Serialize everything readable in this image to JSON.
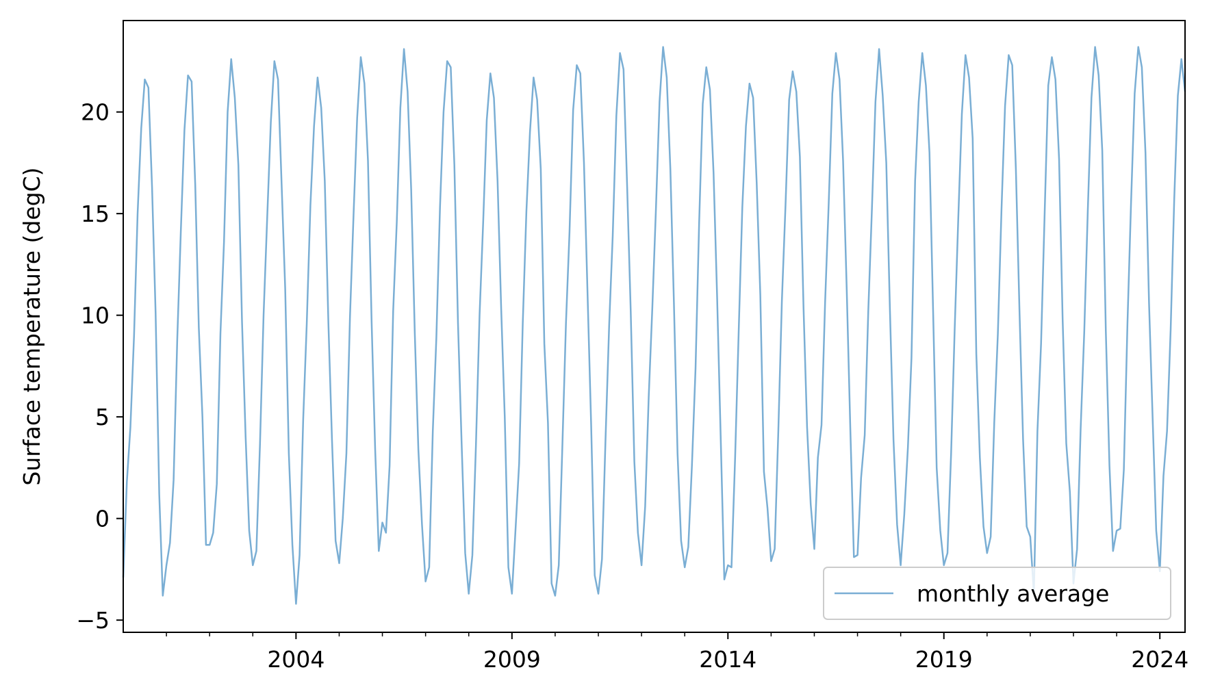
{
  "chart_data": {
    "type": "line",
    "title": "",
    "xlabel": "",
    "ylabel": "Surface temperature (degC)",
    "x_start": "2000-01",
    "x_frequency": "monthly",
    "xlim": [
      "2000-01",
      "2024-08"
    ],
    "ylim": [
      -5.6,
      24.5
    ],
    "x_major_ticks": [
      "2004",
      "2009",
      "2014",
      "2019",
      "2024"
    ],
    "x_minor_tick_years": [
      2001,
      2002,
      2003,
      2005,
      2006,
      2007,
      2008,
      2010,
      2011,
      2012,
      2013,
      2015,
      2016,
      2017,
      2018,
      2020,
      2021,
      2022,
      2023
    ],
    "y_ticks": [
      -5,
      0,
      5,
      10,
      15,
      20
    ],
    "y_tick_labels": [
      "−5",
      "0",
      "5",
      "10",
      "15",
      "20"
    ],
    "grid": false,
    "legend_position": "lower-right",
    "series": [
      {
        "name": "monthly average",
        "color": "#7aaed4",
        "values": [
          -2.9,
          1.8,
          4.5,
          9.0,
          15.0,
          19.2,
          21.6,
          21.2,
          16.3,
          10.1,
          1.2,
          -3.8,
          -2.3,
          -1.2,
          1.9,
          8.8,
          14.1,
          19.1,
          21.8,
          21.5,
          16.4,
          9.4,
          5.0,
          -1.3,
          -1.3,
          -0.7,
          1.7,
          9.1,
          13.6,
          20.0,
          22.6,
          20.7,
          17.4,
          9.7,
          4.0,
          -0.6,
          -2.3,
          -1.6,
          3.7,
          10.0,
          14.8,
          19.5,
          22.5,
          21.6,
          16.5,
          11.3,
          3.2,
          -1.3,
          -4.2,
          -1.8,
          4.9,
          9.6,
          15.4,
          19.3,
          21.7,
          20.2,
          16.6,
          9.6,
          3.9,
          -1.1,
          -2.2,
          0.0,
          3.2,
          9.9,
          15.0,
          19.7,
          22.7,
          21.4,
          17.6,
          9.7,
          3.4,
          -1.6,
          -0.2,
          -0.7,
          2.6,
          10.2,
          14.6,
          20.2,
          23.1,
          21.0,
          16.2,
          9.1,
          3.4,
          -0.3,
          -3.1,
          -2.4,
          4.3,
          8.9,
          15.3,
          20.0,
          22.5,
          22.2,
          17.4,
          9.6,
          3.8,
          -1.7,
          -3.7,
          -1.8,
          3.6,
          10.0,
          14.6,
          19.6,
          21.9,
          20.7,
          16.6,
          10.3,
          5.0,
          -2.4,
          -3.7,
          -0.5,
          2.7,
          9.6,
          15.1,
          19.0,
          21.7,
          20.6,
          17.2,
          8.6,
          4.7,
          -3.2,
          -3.8,
          -2.3,
          3.5,
          9.6,
          14.1,
          20.1,
          22.3,
          21.9,
          17.5,
          11.1,
          4.6,
          -2.8,
          -3.7,
          -2.0,
          3.9,
          9.5,
          13.9,
          19.8,
          22.9,
          22.1,
          16.3,
          10.2,
          2.8,
          -0.7,
          -2.3,
          0.6,
          6.0,
          10.4,
          15.2,
          20.5,
          23.2,
          21.7,
          17.2,
          10.6,
          3.2,
          -1.1,
          -2.4,
          -1.4,
          2.6,
          7.4,
          14.5,
          20.4,
          22.2,
          21.1,
          17.0,
          10.9,
          3.9,
          -3.0,
          -2.3,
          -2.4,
          3.0,
          9.3,
          15.3,
          19.3,
          21.4,
          20.7,
          16.5,
          11.0,
          2.3,
          0.5,
          -2.1,
          -1.5,
          4.3,
          10.7,
          15.4,
          20.6,
          22.0,
          21.0,
          17.8,
          10.4,
          4.5,
          0.7,
          -1.5,
          3.0,
          4.6,
          10.6,
          15.5,
          20.9,
          22.9,
          21.6,
          17.6,
          11.3,
          4.5,
          -1.9,
          -1.8,
          2.0,
          4.1,
          10.2,
          15.2,
          20.5,
          23.1,
          20.8,
          17.5,
          10.3,
          3.9,
          -0.3,
          -2.3,
          0.2,
          3.5,
          7.9,
          16.6,
          20.5,
          22.9,
          21.3,
          18.0,
          10.2,
          2.5,
          -0.6,
          -2.3,
          -1.7,
          3.2,
          9.3,
          14.8,
          19.9,
          22.8,
          21.7,
          18.7,
          8.1,
          3.0,
          -0.4,
          -1.7,
          -0.9,
          4.7,
          9.1,
          15.2,
          20.3,
          22.8,
          22.3,
          17.2,
          10.3,
          3.9,
          -0.4,
          -0.9,
          -3.7,
          4.3,
          8.6,
          15.1,
          21.3,
          22.7,
          21.6,
          17.7,
          9.8,
          3.7,
          1.3,
          -3.2,
          -1.5,
          4.4,
          9.2,
          15.2,
          20.7,
          23.2,
          21.8,
          18.1,
          9.2,
          2.6,
          -1.6,
          -0.6,
          -0.5,
          2.4,
          9.6,
          15.5,
          20.9,
          23.2,
          22.2,
          18.0,
          10.6,
          4.9,
          -0.6,
          -2.6,
          2.1,
          4.3,
          9.3,
          15.7,
          20.8,
          22.6,
          21.0
        ]
      }
    ]
  }
}
